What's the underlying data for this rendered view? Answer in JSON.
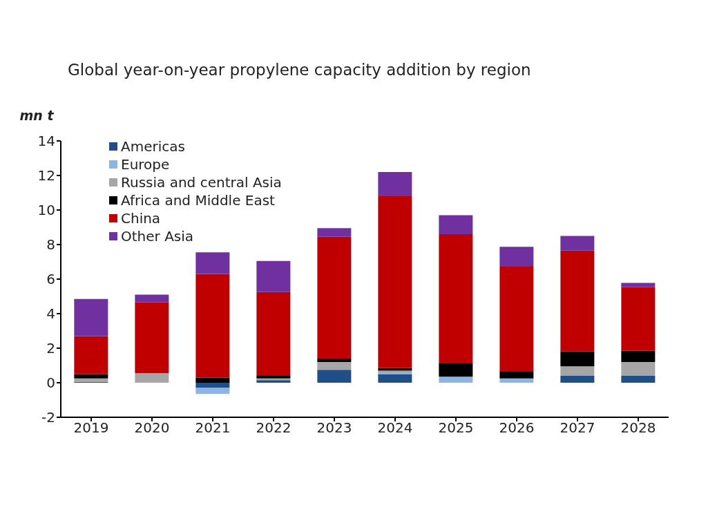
{
  "chart_data": {
    "type": "bar",
    "title": "Global year-on-year propylene capacity addition by region",
    "ylabel": "mn t",
    "categories": [
      "2019",
      "2020",
      "2021",
      "2022",
      "2023",
      "2024",
      "2025",
      "2026",
      "2027",
      "2028"
    ],
    "stacked": true,
    "ylim": [
      -2,
      14
    ],
    "yticks": [
      -2,
      0,
      2,
      4,
      6,
      8,
      10,
      12,
      14
    ],
    "grid": false,
    "legend": "top left",
    "series": [
      {
        "name": "Americas",
        "color": "#1f4e89",
        "values": [
          0.05,
          0,
          -0.3,
          0.15,
          0.75,
          0.5,
          0,
          0,
          0.4,
          0.4
        ]
      },
      {
        "name": "Europe",
        "color": "#8db4e2",
        "values": [
          0,
          0,
          -0.35,
          0,
          0,
          0.1,
          0.35,
          0.25,
          0,
          0
        ]
      },
      {
        "name": "Russia and central Asia",
        "color": "#a6a6a6",
        "values": [
          0.2,
          0.55,
          0,
          0.1,
          0.45,
          0.1,
          0,
          0,
          0.55,
          0.8
        ]
      },
      {
        "name": "Africa and Middle East",
        "color": "#000000",
        "values": [
          0.25,
          0,
          0.3,
          0.15,
          0.2,
          0.15,
          0.8,
          0.42,
          0.87,
          0.66
        ]
      },
      {
        "name": "China",
        "color": "#c00000",
        "values": [
          2.2,
          4.1,
          6.0,
          4.85,
          7.05,
          9.95,
          7.45,
          6.05,
          5.83,
          3.67
        ]
      },
      {
        "name": "Other Asia",
        "color": "#7030a0",
        "values": [
          2.15,
          0.45,
          1.25,
          1.8,
          0.5,
          1.4,
          1.1,
          1.15,
          0.85,
          0.25
        ]
      }
    ]
  }
}
